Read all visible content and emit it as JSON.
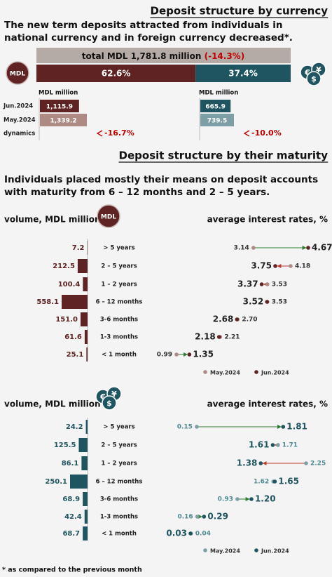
{
  "currency": {
    "title": "Deposit structure by currency",
    "subtitle": "The new term deposits attracted from individuals in national currency and in foreign currency decreased",
    "subtitle_mark": "*.",
    "total_label": "total MDL 1,781.8 million",
    "total_change": "(-14.3%)",
    "badge": "MDL",
    "fx_symbols": [
      "€",
      "¥",
      "$"
    ],
    "shares": {
      "values": [
        62.6,
        37.4
      ],
      "value_labels": [
        "62.6%",
        "37.4%"
      ],
      "colors": [
        "#5e2322",
        "#1f5560"
      ]
    },
    "row_labels": [
      "Jun.2024",
      "May.2024",
      "dynamics"
    ],
    "groups": [
      {
        "unit": "MDL million",
        "values": [
          1115.9,
          1339.2
        ],
        "value_labels": [
          "1,115.9",
          "1,339.2"
        ],
        "colors": [
          "#5e2322",
          "#ad8a84"
        ],
        "dynamics": "-16.7%"
      },
      {
        "unit": "MDL million",
        "values": [
          665.9,
          739.5
        ],
        "value_labels": [
          "665.9",
          "739.5"
        ],
        "colors": [
          "#1f5560",
          "#7c9ea4"
        ],
        "dynamics": "-10.0%"
      }
    ]
  },
  "maturity": {
    "title": "Deposit structure by their maturity",
    "subtitle": "Individuals placed mostly their means on deposit accounts with maturity from 6 – 12 months and 2 – 5 years.",
    "panels": [
      {
        "volume_label": "volume, MDL million",
        "rates_label": "average interest rates, %",
        "colors": [
          "#ad8a84",
          "#5e2322"
        ],
        "categories": [
          "> 5 years",
          "2 – 5 years",
          "1 – 2 years",
          "6 – 12 months",
          "3-6 months",
          "1-3 months",
          "< 1 month"
        ],
        "volumes": [
          7.2,
          212.5,
          100.4,
          558.1,
          151.0,
          61.6,
          25.1
        ],
        "volume_labels": [
          "7.2",
          "212.5",
          "100.4",
          "558.1",
          "151.0",
          "61.6",
          "25.1"
        ],
        "may": [
          3.14,
          4.18,
          3.53,
          3.53,
          2.7,
          2.21,
          0.99
        ],
        "may_labels": [
          "3.14",
          "4.18",
          "3.53",
          "3.53",
          "2.70",
          "2.21",
          "0.99"
        ],
        "jun": [
          4.67,
          3.75,
          3.37,
          3.52,
          2.68,
          2.18,
          1.35
        ],
        "jun_labels": [
          "4.67",
          "3.75",
          "3.37",
          "3.52",
          "2.68",
          "2.18",
          "1.35"
        ],
        "legend": [
          "May.2024",
          "Jun.2024"
        ]
      },
      {
        "volume_label": "volume, MDL million",
        "rates_label": "average interest rates, %",
        "colors": [
          "#7c9ea4",
          "#1f5560"
        ],
        "categories": [
          "> 5 years",
          "2 – 5 years",
          "1 – 2 years",
          "6 – 12 months",
          "3-6 months",
          "1-3 months",
          "< 1 month"
        ],
        "volumes": [
          24.2,
          125.5,
          86.1,
          250.1,
          68.9,
          42.4,
          68.7
        ],
        "volume_labels": [
          "24.2",
          "125.5",
          "86.1",
          "250.1",
          "68.9",
          "42.4",
          "68.7"
        ],
        "may": [
          0.15,
          1.71,
          2.25,
          1.62,
          0.93,
          0.16,
          0.04
        ],
        "may_labels": [
          "0.15",
          "1.71",
          "2.25",
          "1.62",
          "0.93",
          "0.16",
          "0.04"
        ],
        "jun": [
          1.81,
          1.61,
          1.38,
          1.65,
          1.2,
          0.29,
          0.03
        ],
        "jun_labels": [
          "1.81",
          "1.61",
          "1.38",
          "1.65",
          "1.20",
          "0.29",
          "0.03"
        ],
        "legend": [
          "May.2024",
          "Jun.2024"
        ]
      }
    ]
  },
  "footnote": "* as compared to the previous month"
}
